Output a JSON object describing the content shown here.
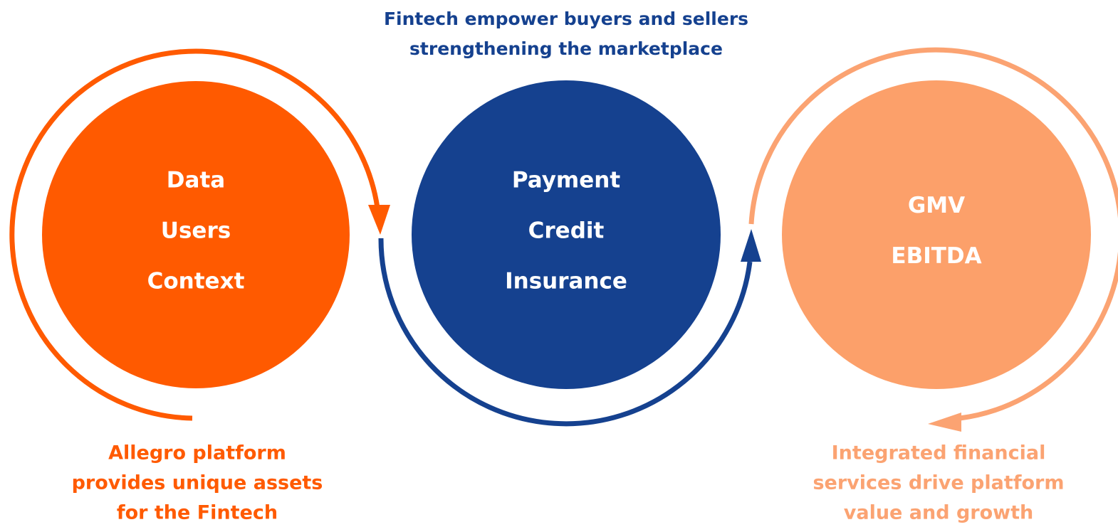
{
  "top_caption": {
    "lines": [
      "Fintech empower buyers and sellers",
      "strengthening the marketplace"
    ]
  },
  "circles": [
    {
      "items": [
        "Data",
        "Users",
        "Context"
      ]
    },
    {
      "items": [
        "Payment",
        "Credit",
        "Insurance"
      ]
    },
    {
      "items": [
        "GMV",
        "EBITDA"
      ]
    }
  ],
  "left_caption": {
    "lines": [
      "Allegro platform",
      "provides unique assets",
      "for the Fintech"
    ]
  },
  "right_caption": {
    "lines": [
      "Integrated financial",
      "services drive platform",
      "value and growth"
    ]
  }
}
